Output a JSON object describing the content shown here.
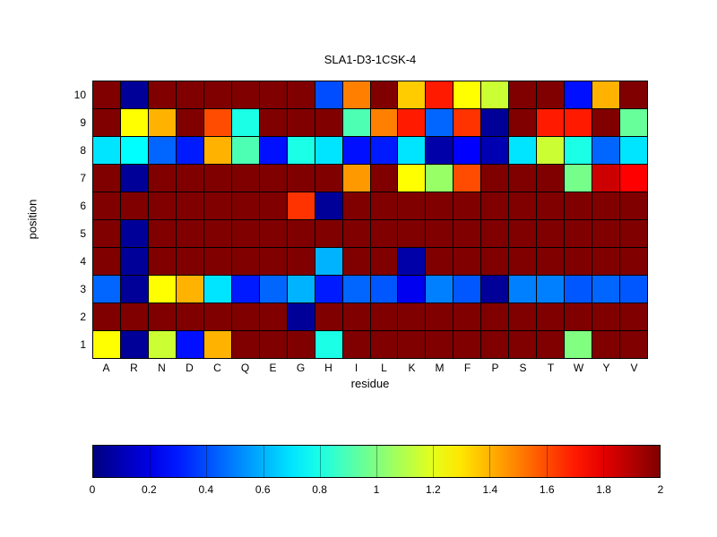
{
  "chart_data": {
    "type": "heatmap",
    "title": "SLA1-D3-1CSK-4",
    "xlabel": "residue",
    "ylabel": "position",
    "x_categories": [
      "A",
      "R",
      "N",
      "D",
      "C",
      "Q",
      "E",
      "G",
      "H",
      "I",
      "L",
      "K",
      "M",
      "F",
      "P",
      "S",
      "T",
      "W",
      "Y",
      "V"
    ],
    "y_categories": [
      "10",
      "9",
      "8",
      "7",
      "6",
      "5",
      "4",
      "3",
      "2",
      "1"
    ],
    "colormap": "jet",
    "vmin": 0,
    "vmax": 2,
    "grid": true,
    "values_rows_top_to_bottom": [
      [
        2,
        0.05,
        2,
        2,
        2,
        2,
        2,
        2,
        0.4,
        1.5,
        2,
        1.35,
        1.7,
        1.25,
        1.15,
        2,
        2,
        0.28,
        1.4,
        2
      ],
      [
        2,
        1.25,
        1.4,
        2,
        1.6,
        0.8,
        2,
        2,
        2,
        0.9,
        1.5,
        1.7,
        0.45,
        1.65,
        0.05,
        2,
        1.7,
        1.7,
        2,
        0.95
      ],
      [
        0.7,
        0.75,
        0.45,
        0.3,
        1.4,
        0.9,
        0.28,
        0.8,
        0.7,
        0.28,
        0.3,
        0.7,
        0.08,
        0.25,
        0.1,
        0.7,
        1.15,
        0.8,
        0.45,
        0.7
      ],
      [
        2,
        0.05,
        2,
        2,
        2,
        2,
        2,
        2,
        2,
        1.45,
        2,
        1.25,
        1.05,
        1.6,
        2,
        2,
        2,
        0.98,
        1.85,
        1.75
      ],
      [
        2,
        2,
        2,
        2,
        2,
        2,
        2,
        1.65,
        0.05,
        2,
        2,
        2,
        2,
        2,
        2,
        2,
        2,
        2,
        2,
        2
      ],
      [
        2,
        0.05,
        2,
        2,
        2,
        2,
        2,
        2,
        2,
        2,
        2,
        2,
        2,
        2,
        2,
        2,
        2,
        2,
        2,
        2
      ],
      [
        2,
        0.05,
        2,
        2,
        2,
        2,
        2,
        2,
        0.6,
        2,
        2,
        0.08,
        2,
        2,
        2,
        2,
        2,
        2,
        2,
        2
      ],
      [
        0.45,
        0.05,
        1.25,
        1.4,
        0.7,
        0.3,
        0.45,
        0.6,
        0.3,
        0.45,
        0.42,
        0.22,
        0.5,
        0.42,
        0.05,
        0.5,
        0.5,
        0.42,
        0.45,
        0.42
      ],
      [
        2,
        2,
        2,
        2,
        2,
        2,
        2,
        0.05,
        2,
        2,
        2,
        2,
        2,
        2,
        2,
        2,
        2,
        2,
        2,
        2
      ],
      [
        1.25,
        0.05,
        1.15,
        0.28,
        1.4,
        2,
        2,
        2,
        0.8,
        2,
        2,
        2,
        2,
        2,
        2,
        2,
        2,
        1.0,
        2,
        2
      ]
    ],
    "colorbar": {
      "orientation": "horizontal",
      "tick_values": [
        0,
        0.2,
        0.4,
        0.6,
        0.8,
        1,
        1.2,
        1.4,
        1.6,
        1.8,
        2
      ],
      "tick_labels": [
        "0",
        "0.2",
        "0.4",
        "0.6",
        "0.8",
        "1",
        "1.2",
        "1.4",
        "1.6",
        "1.8",
        "2"
      ]
    }
  }
}
